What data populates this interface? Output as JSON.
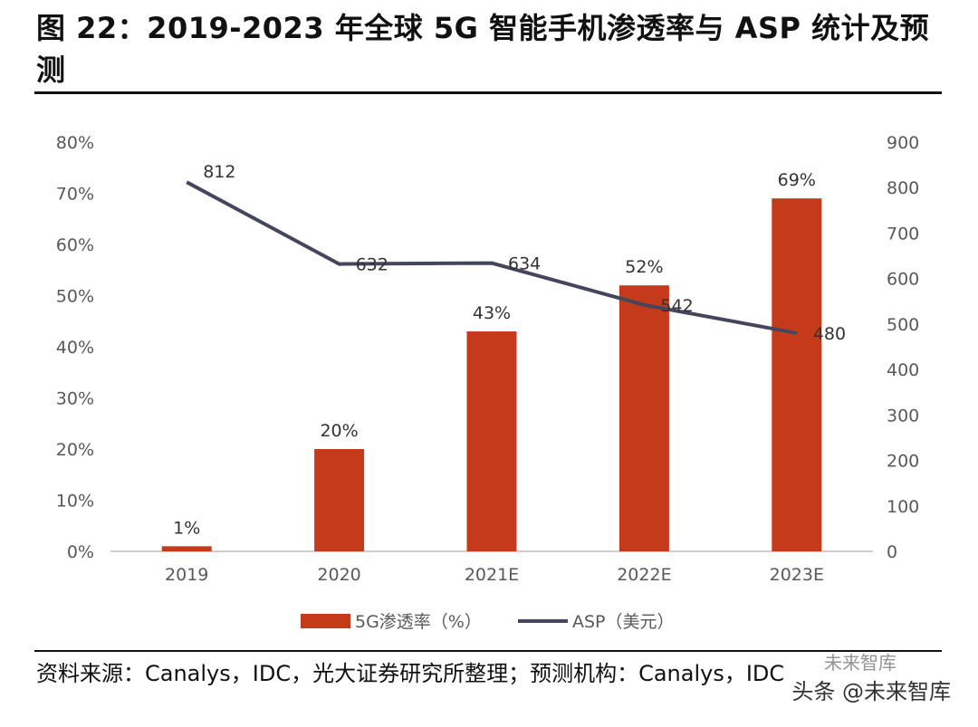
{
  "title": "图 22：2019-2023 年全球 5G 智能手机渗透率与 ASP 统计及预测",
  "source": "资料来源：Canalys，IDC，光大证券研究所整理；预测机构：Canalys，IDC",
  "watermark": {
    "main": "头条 @未来智库",
    "secondary": "未来智库"
  },
  "colors": {
    "bar": "#C63A1C",
    "line": "#44465E",
    "axis": "#BFBFBF",
    "text": "#595959"
  },
  "chart_data": {
    "type": "bar",
    "categories": [
      "2019",
      "2020",
      "2021E",
      "2022E",
      "2023E"
    ],
    "series": [
      {
        "name": "5G渗透率（%）",
        "type": "bar",
        "axis": "left",
        "values": [
          1,
          20,
          43,
          52,
          69
        ],
        "labels": [
          "1%",
          "20%",
          "43%",
          "52%",
          "69%"
        ]
      },
      {
        "name": "ASP（美元）",
        "type": "line",
        "axis": "right",
        "values": [
          812,
          632,
          634,
          542,
          480
        ],
        "labels": [
          "812",
          "632",
          "634",
          "542",
          "480"
        ]
      }
    ],
    "y_left": {
      "range": [
        0,
        80
      ],
      "ticks": [
        "0%",
        "10%",
        "20%",
        "30%",
        "40%",
        "50%",
        "60%",
        "70%",
        "80%"
      ]
    },
    "y_right": {
      "range": [
        0,
        900
      ],
      "ticks": [
        "0",
        "100",
        "200",
        "300",
        "400",
        "500",
        "600",
        "700",
        "800",
        "900"
      ]
    },
    "legend_position": "bottom"
  }
}
